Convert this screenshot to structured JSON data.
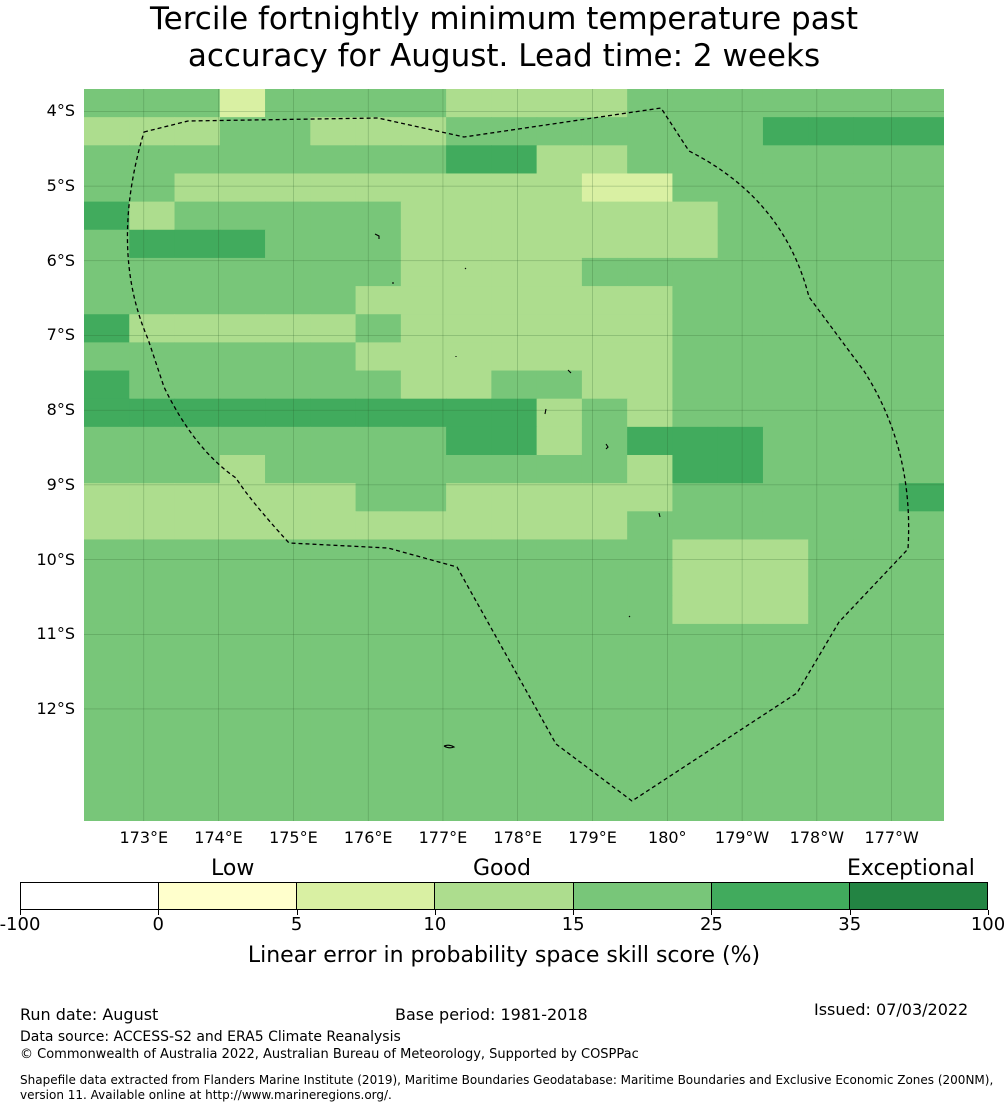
{
  "title": {
    "line1": "Tercile fortnightly minimum temperature past",
    "line2": "accuracy for August. Lead time: 2 weeks"
  },
  "map": {
    "lat_labels": [
      "4°S",
      "5°S",
      "6°S",
      "7°S",
      "8°S",
      "9°S",
      "10°S",
      "11°S",
      "12°S"
    ],
    "lon_labels": [
      "173°E",
      "174°E",
      "175°E",
      "176°E",
      "177°E",
      "178°E",
      "179°E",
      "180°",
      "179°W",
      "178°W",
      "177°W"
    ],
    "extent": {
      "lon_min": 172.2,
      "lon_max": 183.7,
      "lat_min": -13.5,
      "lat_max": -3.7
    },
    "grid_cell_rows": [
      "4442444433334444444",
      "3334433344444445555",
      "4444444455334444444",
      "4433333333322444444",
      "5344444333333344444",
      "4555444333333344444",
      "4444444333344444444",
      "4444443333333444444",
      "5333334333333444444",
      "4444443333333444444",
      "5444444334433444444",
      "5555555555343444444",
      "4444444455345554444",
      "4443444444443554444",
      "3333334433333444445",
      "3333333333334444444",
      "4444444444444333444",
      "4444444444444333444",
      "4444444444444333444",
      "4444444444444444444",
      "4444444444444444444",
      "4444444444444444444",
      "4444444444444444444",
      "4444444444444444444",
      "4444444444444444444",
      "4444444444444444444"
    ],
    "colors": {
      "c0": "#ffffff",
      "c1": "#ffffcc",
      "c2": "#d9f0a3",
      "c3": "#addd8e",
      "c4": "#78c679",
      "c5": "#41ab5d",
      "c6": "#238443",
      "gridline": "#2a5d2a",
      "boundary": "#000000"
    }
  },
  "legend": {
    "categories": [
      "Low",
      "Good",
      "Exceptional"
    ],
    "ticks": [
      "-100",
      "0",
      "5",
      "10",
      "15",
      "25",
      "35",
      "100"
    ],
    "label": "Linear error in probability space skill score (%)"
  },
  "footer": {
    "run_date": "Run date: August",
    "base_period": "Base period: 1981-2018",
    "issued": "Issued: 07/03/2022",
    "data_source": "Data source: ACCESS-S2 and ERA5 Climate Reanalysis",
    "copyright": "© Commonwealth of Australia 2022, Australian Bureau of Meteorology, Supported by COSPPac",
    "shapefile": "Shapefile data extracted from Flanders Marine Institute (2019), Maritime Boundaries Geodatabase: Maritime Boundaries and Exclusive Economic Zones (200NM), version 11. Available online at http://www.marineregions.org/."
  }
}
